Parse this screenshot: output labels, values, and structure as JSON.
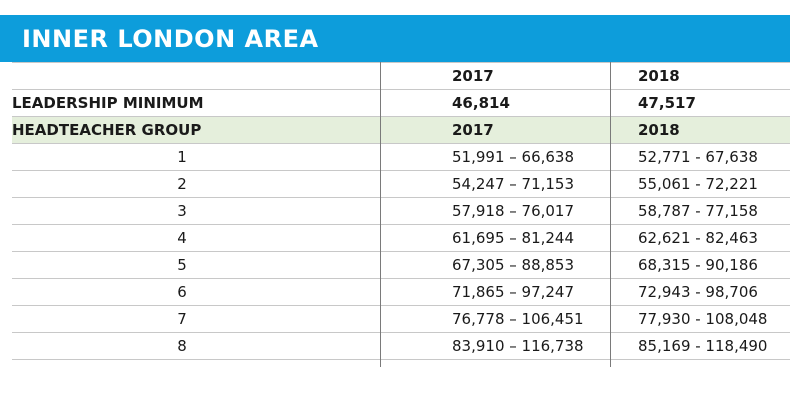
{
  "title": "INNER LONDON AREA",
  "header": {
    "year1": "2017",
    "year2": "2018"
  },
  "leadership": {
    "label": "LEADERSHIP MINIMUM",
    "v2017": "46,814",
    "v2018": "47,517"
  },
  "group_header": {
    "label": "HEADTEACHER GROUP",
    "year1": "2017",
    "year2": "2018"
  },
  "rows": [
    {
      "group": "1",
      "v2017": "51,991 – 66,638",
      "v2018": "52,771 - 67,638"
    },
    {
      "group": "2",
      "v2017": "54,247 – 71,153",
      "v2018": "55,061 - 72,221"
    },
    {
      "group": "3",
      "v2017": "57,918 – 76,017",
      "v2018": "58,787 - 77,158"
    },
    {
      "group": "4",
      "v2017": "61,695 – 81,244",
      "v2018": "62,621 - 82,463"
    },
    {
      "group": "5",
      "v2017": "67,305 – 88,853",
      "v2018": "68,315 - 90,186"
    },
    {
      "group": "6",
      "v2017": "71,865 – 97,247",
      "v2018": "72,943 - 98,706"
    },
    {
      "group": "7",
      "v2017": "76,778 – 106,451",
      "v2018": "77,930 - 108,048"
    },
    {
      "group": "8",
      "v2017": "83,910 – 116,738",
      "v2018": "85,169 - 118,490"
    }
  ],
  "colors": {
    "banner": "#0d9ddb",
    "group_row": "#e5efdc"
  }
}
